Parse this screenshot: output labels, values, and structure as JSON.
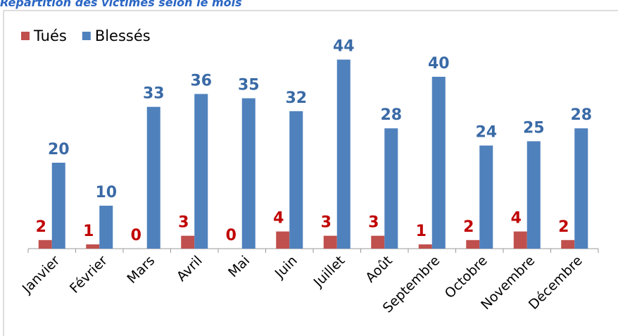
{
  "chart_data": {
    "type": "bar",
    "title": "Répartition des victimes selon le mois",
    "categories": [
      "Janvier",
      "Février",
      "Mars",
      "Avril",
      "Mai",
      "Juin",
      "Juillet",
      "Août",
      "Septembre",
      "Octobre",
      "Novembre",
      "Décembre"
    ],
    "series": [
      {
        "name": "Tués",
        "color": "#c0504d",
        "values": [
          2,
          1,
          0,
          3,
          0,
          4,
          3,
          3,
          1,
          2,
          4,
          2
        ]
      },
      {
        "name": "Blessés",
        "color": "#4f81bd",
        "values": [
          20,
          10,
          33,
          36,
          35,
          32,
          44,
          28,
          40,
          24,
          25,
          28
        ]
      }
    ],
    "label_colors": [
      "#c00000",
      "#3a6aa6"
    ],
    "ylim": [
      0,
      50
    ],
    "legend": "top-left"
  }
}
